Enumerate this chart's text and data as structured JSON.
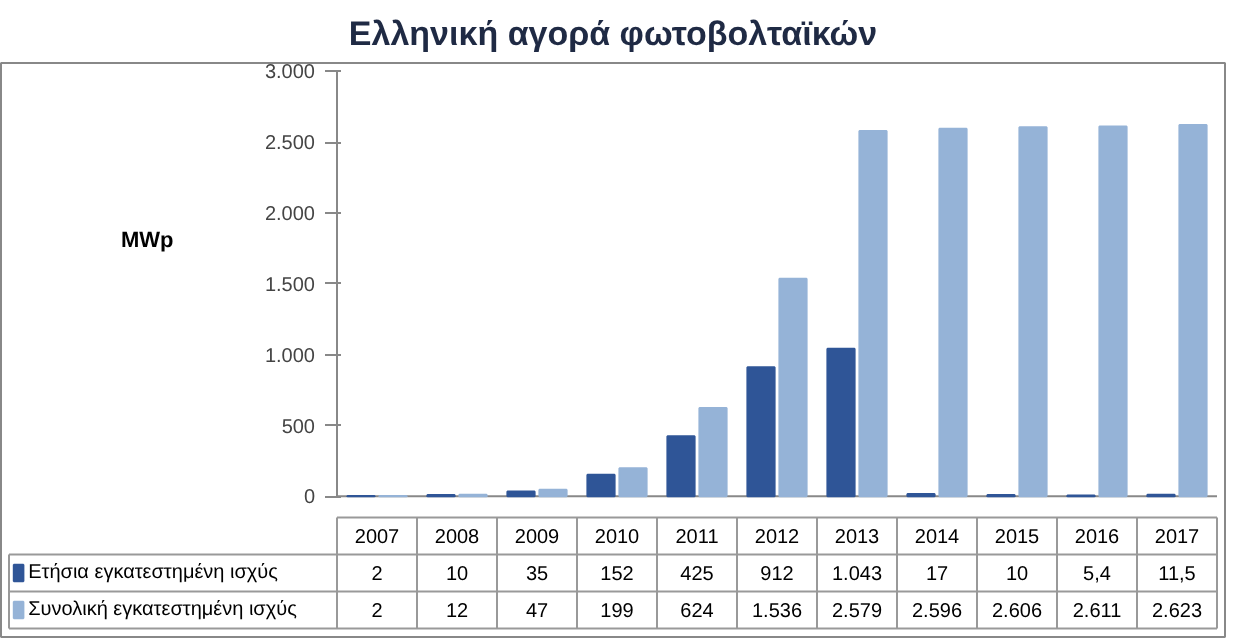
{
  "chart_data": {
    "type": "bar",
    "title": "Ελληνική αγορά φωτοβολταϊκών",
    "ylabel": "MWp",
    "categories": [
      "2007",
      "2008",
      "2009",
      "2010",
      "2011",
      "2012",
      "2013",
      "2014",
      "2015",
      "2016",
      "2017"
    ],
    "series": [
      {
        "name": "Ετήσια εγκατεστημένη ισχύς",
        "color": "#2f5597",
        "values": [
          2,
          10,
          35,
          152,
          425,
          912,
          1043,
          17,
          10,
          5.4,
          11.5
        ],
        "value_labels": [
          "2",
          "10",
          "35",
          "152",
          "425",
          "912",
          "1.043",
          "17",
          "10",
          "5,4",
          "11,5"
        ]
      },
      {
        "name": "Συνολική εγκατεστημένη ισχύς",
        "color": "#95b3d7",
        "values": [
          2,
          12,
          47,
          199,
          624,
          1536,
          2579,
          2596,
          2606,
          2611,
          2623
        ],
        "value_labels": [
          "2",
          "12",
          "47",
          "199",
          "624",
          "1.536",
          "2.579",
          "2.596",
          "2.606",
          "2.611",
          "2.623"
        ]
      }
    ],
    "ylim": [
      0,
      3000
    ],
    "yticks": [
      0,
      500,
      {
        "value": 1000,
        "label": "1.000"
      },
      {
        "value": 1500,
        "label": "1.500"
      },
      {
        "value": 2000,
        "label": "2.000"
      },
      {
        "value": 2500,
        "label": "2.500"
      },
      {
        "value": 3000,
        "label": "3.000"
      }
    ],
    "grid": false,
    "legend": "bottom"
  }
}
